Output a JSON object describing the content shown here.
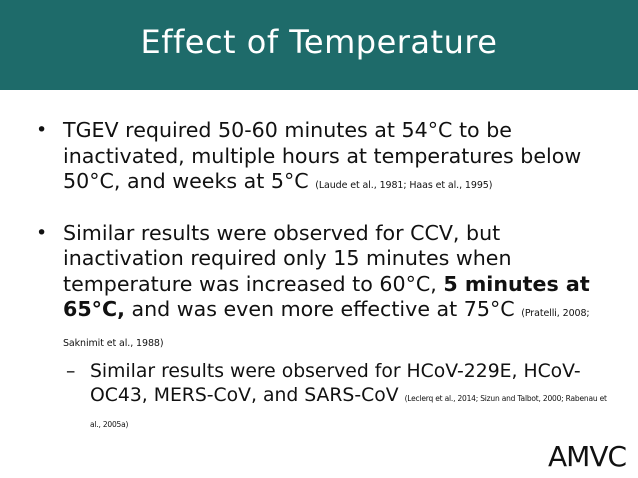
{
  "title": "Effect of Temperature",
  "bullets": [
    {
      "text": "TGEV required 50-60 minutes at 54°C to be inactivated, multiple hours at temperatures below 50°C, and weeks at 5°C",
      "cite": "(Laude et al., 1981; Haas et al., 1995)"
    },
    {
      "text_before_bold": "Similar results were observed for CCV, but inactivation required only 15 minutes when temperature was increased to 60°C,",
      "bold_text": "5 minutes at 65°C,",
      "text_after_bold": "and was even more effective at 75°C",
      "cite": "(Pratelli, 2008; Saknimit et al., 1988)"
    }
  ],
  "sub_bullet": {
    "dash": "–",
    "text": "Similar results were observed for HCoV-229E, HCoV-OC43, MERS-CoV, and SARS-CoV",
    "cite": "(Leclerq et al., 2014; Sizun and Talbot, 2000; Rabenau et al., 2005a)"
  },
  "bullet_glyph": "•",
  "logo": "AMVC",
  "colors": {
    "title_bar": "#1e6b6a",
    "title_text": "#ffffff",
    "body_text": "#111111"
  }
}
